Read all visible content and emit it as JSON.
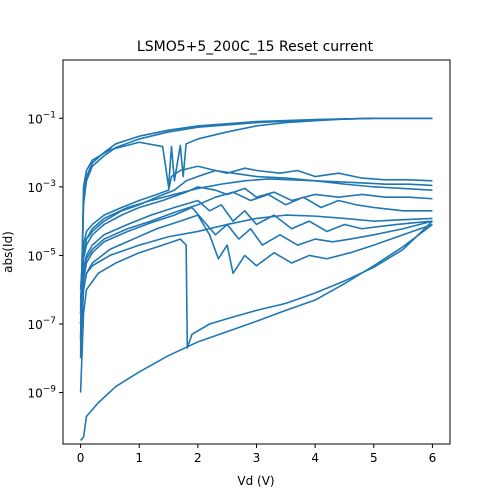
{
  "chart_data": {
    "type": "line",
    "title": "LSMO5+5_200C_15 Reset current",
    "xlabel": "Vd (V)",
    "ylabel": "abs(Id)",
    "xlim": [
      -0.3,
      6.3
    ],
    "ylim_log10": [
      -10.5,
      0.7
    ],
    "yscale": "log",
    "x_ticks": [
      0,
      1,
      2,
      3,
      4,
      5,
      6
    ],
    "x_tick_labels": [
      "0",
      "1",
      "2",
      "3",
      "4",
      "5",
      "6"
    ],
    "y_ticks_exp": [
      -9,
      -7,
      -5,
      -3,
      -1
    ],
    "y_tick_labels": [
      {
        "base": "10",
        "exp": "−9"
      },
      {
        "base": "10",
        "exp": "−7"
      },
      {
        "base": "10",
        "exp": "−5"
      },
      {
        "base": "10",
        "exp": "−3"
      },
      {
        "base": "10",
        "exp": "−1"
      }
    ],
    "grid": false,
    "legend": "none",
    "color": "#1f77b4",
    "series": [
      {
        "x": [
          0,
          0.05,
          0.1,
          0.2,
          0.4,
          0.6,
          1.0,
          1.5,
          2.0,
          3.0,
          4.0,
          5.0,
          6.0
        ],
        "y": [
          1e-08,
          0.0005,
          0.002,
          0.005,
          0.01,
          0.018,
          0.03,
          0.045,
          0.06,
          0.08,
          0.092,
          0.1,
          0.1
        ]
      },
      {
        "x": [
          0,
          0.05,
          0.1,
          0.2,
          0.4,
          0.6,
          1.0,
          1.5,
          2.0,
          3.0,
          4.0,
          5.0,
          6.0
        ],
        "y": [
          2e-07,
          0.0003,
          0.0015,
          0.004,
          0.008,
          0.014,
          0.025,
          0.04,
          0.055,
          0.075,
          0.09,
          0.1,
          0.1
        ]
      },
      {
        "x": [
          0,
          0.05,
          0.1,
          0.2,
          0.4,
          0.7,
          1.0,
          1.3,
          1.5,
          1.55,
          1.7,
          2.0,
          2.3,
          2.5,
          2.8,
          3.0,
          3.4,
          3.7,
          4.0,
          4.4,
          4.8,
          5.2,
          5.6,
          6.0
        ],
        "y": [
          1e-06,
          2e-05,
          5e-05,
          8e-05,
          0.00015,
          0.00025,
          0.0004,
          0.0006,
          0.0008,
          0.002,
          0.003,
          0.004,
          0.003,
          0.0025,
          0.0035,
          0.003,
          0.0025,
          0.003,
          0.002,
          0.0025,
          0.0018,
          0.0016,
          0.0016,
          0.0015
        ]
      },
      {
        "x": [
          0,
          0.05,
          0.1,
          0.2,
          0.4,
          0.7,
          1.0,
          1.3,
          1.6,
          1.8,
          2.0,
          2.3,
          2.6,
          3.0,
          3.5,
          4.0,
          4.5,
          5.0,
          5.5,
          6.0
        ],
        "y": [
          5e-07,
          1e-05,
          3e-05,
          5e-05,
          0.0001,
          0.0002,
          0.0003,
          0.0005,
          0.0008,
          0.0015,
          0.002,
          0.003,
          0.0025,
          0.002,
          0.0018,
          0.0015,
          0.0012,
          0.001,
          0.0009,
          0.0008
        ]
      },
      {
        "x": [
          0,
          0.05,
          0.1,
          0.2,
          0.4,
          0.7,
          1.0,
          1.4,
          1.8,
          2.0,
          2.3,
          2.5,
          2.8,
          3.0,
          3.3,
          3.6,
          4.0,
          4.4,
          4.8,
          5.2,
          5.6,
          6.0
        ],
        "y": [
          2e-07,
          8e-06,
          2e-05,
          4e-05,
          8e-05,
          0.00015,
          0.00025,
          0.0004,
          0.0007,
          0.001,
          0.0008,
          0.0006,
          0.0009,
          0.0005,
          0.0007,
          0.0004,
          0.0006,
          0.0005,
          0.0006,
          0.0005,
          0.0005,
          0.00045
        ]
      },
      {
        "x": [
          0,
          0.05,
          0.1,
          0.2,
          0.4,
          0.8,
          1.2,
          1.6,
          2.0,
          2.2,
          2.4,
          2.6,
          2.8,
          3.0,
          3.3,
          3.6,
          3.9,
          4.2,
          4.5,
          4.8,
          5.1,
          5.4,
          5.7,
          6.0
        ],
        "y": [
          1e-07,
          4e-06,
          1e-05,
          2e-05,
          4e-05,
          8e-05,
          0.00015,
          0.00025,
          0.0004,
          0.0002,
          0.0003,
          0.0001,
          0.0002,
          8e-05,
          0.00015,
          6e-05,
          0.0001,
          5e-05,
          8e-05,
          6e-05,
          7e-05,
          8e-05,
          9e-05,
          0.0001
        ]
      },
      {
        "x": [
          0,
          0.05,
          0.1,
          0.2,
          0.4,
          0.8,
          1.2,
          1.6,
          1.9,
          2.1,
          2.3,
          2.5,
          2.7,
          2.9,
          3.1,
          3.4,
          3.7,
          4.0,
          4.3,
          4.6,
          5.0,
          5.5,
          6.0
        ],
        "y": [
          5e-08,
          2e-06,
          6e-06,
          1.2e-05,
          2.5e-05,
          5e-05,
          9e-05,
          0.00015,
          0.00025,
          0.0001,
          4e-05,
          8e-05,
          3e-05,
          6e-05,
          2e-05,
          4e-05,
          2e-05,
          3e-05,
          2.5e-05,
          3e-05,
          4e-05,
          6e-05,
          0.0001
        ]
      },
      {
        "x": [
          0,
          0.05,
          0.1,
          0.2,
          0.5,
          0.9,
          1.3,
          1.7,
          2.0,
          2.2,
          2.35,
          2.5,
          2.6,
          2.8,
          3.0,
          3.3,
          3.6,
          3.9,
          4.2,
          4.6,
          5.0,
          5.5,
          6.0
        ],
        "y": [
          2e-08,
          1e-06,
          3e-06,
          6e-06,
          1.5e-05,
          3e-05,
          6e-05,
          0.0001,
          0.00015,
          4e-05,
          8e-06,
          2e-05,
          3e-06,
          1e-05,
          5e-06,
          1.2e-05,
          6e-06,
          1e-05,
          8e-06,
          1.2e-05,
          2e-05,
          4e-05,
          8e-05
        ]
      },
      {
        "x": [
          0,
          0.05,
          0.1,
          0.3,
          0.6,
          1.0,
          1.4,
          1.7,
          1.8,
          1.82,
          1.9,
          2.2,
          2.6,
          3.0,
          3.5,
          4.0,
          4.5,
          5.0,
          5.5,
          6.0
        ],
        "y": [
          1e-09,
          2e-07,
          1e-06,
          3e-06,
          6e-06,
          1.2e-05,
          2e-05,
          3e-05,
          2e-05,
          2e-08,
          5e-08,
          1e-07,
          1.6e-07,
          2.5e-07,
          4e-07,
          8e-07,
          1.8e-06,
          4.5e-06,
          1.5e-05,
          0.0001
        ]
      },
      {
        "x": [
          0,
          0.05,
          0.1,
          0.3,
          0.6,
          1.0,
          1.5,
          2.0,
          2.5,
          3.0,
          3.5,
          4.0,
          4.5,
          5.0,
          5.5,
          6.0
        ],
        "y": [
          4e-11,
          5e-11,
          2e-10,
          5e-10,
          1.5e-09,
          4e-09,
          1.2e-08,
          3e-08,
          6e-08,
          1.2e-07,
          2.5e-07,
          5e-07,
          1.5e-06,
          5e-06,
          1.8e-05,
          8e-05
        ]
      },
      {
        "x": [
          0,
          0.05,
          0.1,
          0.2,
          0.5,
          1.0,
          1.4,
          1.5,
          1.55,
          1.6,
          1.7,
          1.75,
          1.8,
          2.0,
          2.5,
          3.0,
          3.5,
          4.0,
          4.5,
          5.0,
          5.5,
          6.0
        ],
        "y": [
          3e-08,
          0.001,
          0.003,
          0.006,
          0.012,
          0.02,
          0.015,
          0.001,
          0.015,
          0.0015,
          0.016,
          0.002,
          0.018,
          0.025,
          0.04,
          0.06,
          0.075,
          0.085,
          0.095,
          0.1,
          0.1,
          0.1
        ]
      },
      {
        "x": [
          0,
          0.05,
          0.1,
          0.2,
          0.4,
          0.8,
          1.2,
          1.6,
          2.0,
          2.4,
          2.8,
          3.2,
          3.6,
          4.0,
          4.4,
          4.8,
          5.2,
          5.6,
          6.0
        ],
        "y": [
          3e-07,
          1e-05,
          3e-05,
          6e-05,
          0.00012,
          0.00025,
          0.0004,
          0.0006,
          0.0009,
          0.0012,
          0.0015,
          0.0017,
          0.0016,
          0.0015,
          0.0014,
          0.0013,
          0.0012,
          0.0012,
          0.0011
        ]
      },
      {
        "x": [
          0,
          0.05,
          0.1,
          0.2,
          0.4,
          0.8,
          1.2,
          1.6,
          2.0,
          2.3,
          2.6,
          2.9,
          3.2,
          3.5,
          3.8,
          4.1,
          4.4,
          4.7,
          5.0,
          5.5,
          6.0
        ],
        "y": [
          1e-07,
          3e-06,
          8e-06,
          1.5e-05,
          3e-05,
          6e-05,
          0.0001,
          0.00018,
          0.0003,
          0.0005,
          0.0007,
          0.0004,
          0.0006,
          0.0003,
          0.0005,
          0.00025,
          0.0004,
          0.0003,
          0.00025,
          0.0002,
          0.0002
        ]
      },
      {
        "x": [
          0,
          0.05,
          0.1,
          0.2,
          0.5,
          1.0,
          1.5,
          2.0,
          2.5,
          3.0,
          3.5,
          4.0,
          4.5,
          5.0,
          5.5,
          6.0
        ],
        "y": [
          4e-08,
          1e-06,
          3e-06,
          5e-06,
          1e-05,
          2e-05,
          3.5e-05,
          5e-05,
          8e-05,
          0.00012,
          0.00015,
          0.00014,
          0.00012,
          0.0001,
          0.00011,
          0.00012
        ]
      }
    ]
  }
}
